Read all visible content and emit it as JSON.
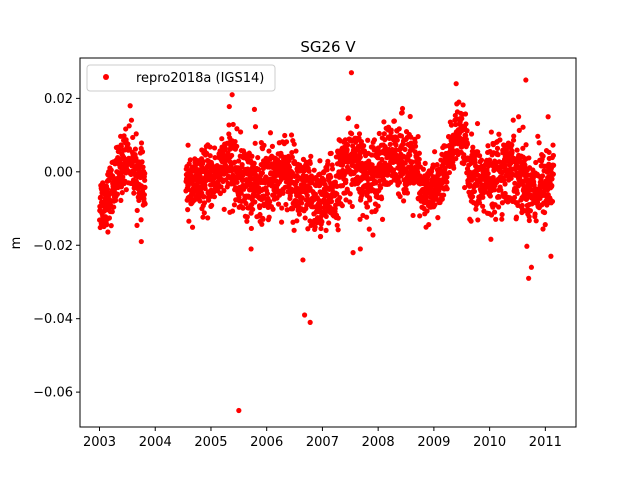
{
  "chart_data": {
    "type": "scatter",
    "title": "SG26 V",
    "xlabel": "",
    "ylabel": "m",
    "xlim": [
      2002.65,
      2011.55
    ],
    "ylim": [
      -0.0695,
      0.031
    ],
    "x_ticks": [
      2003,
      2004,
      2005,
      2006,
      2007,
      2008,
      2009,
      2010,
      2011
    ],
    "y_ticks": [
      0.02,
      0.0,
      -0.02,
      -0.04,
      -0.06
    ],
    "y_tick_labels": [
      "0.02",
      "0.00",
      "−0.02",
      "−0.04",
      "−0.06"
    ],
    "grid": false,
    "legend_position": "top-left",
    "series": [
      {
        "name": "repro2018a (IGS14)",
        "color": "#ff0000",
        "segments": [
          {
            "start": 2003.0,
            "end": 2003.82,
            "mean": [
              [
                2003.0,
                -0.009
              ],
              [
                2003.2,
                -0.006
              ],
              [
                2003.35,
                0.0
              ],
              [
                2003.5,
                0.005
              ],
              [
                2003.65,
                0.0
              ],
              [
                2003.82,
                -0.005
              ]
            ],
            "spread": 0.004
          },
          {
            "start": 2004.55,
            "end": 2005.3,
            "mean": [
              [
                2004.55,
                -0.004
              ],
              [
                2004.8,
                -0.003
              ],
              [
                2005.0,
                -0.002
              ],
              [
                2005.3,
                0.002
              ]
            ],
            "spread": 0.004
          },
          {
            "start": 2005.3,
            "end": 2006.0,
            "mean": [
              [
                2005.3,
                0.003
              ],
              [
                2005.6,
                -0.003
              ],
              [
                2006.0,
                -0.004
              ]
            ],
            "spread": 0.005
          },
          {
            "start": 2006.0,
            "end": 2006.9,
            "mean": [
              [
                2006.0,
                -0.003
              ],
              [
                2006.3,
                0.001
              ],
              [
                2006.6,
                -0.005
              ],
              [
                2006.9,
                -0.008
              ]
            ],
            "spread": 0.005
          },
          {
            "start": 2006.9,
            "end": 2007.8,
            "mean": [
              [
                2006.9,
                -0.008
              ],
              [
                2007.2,
                -0.006
              ],
              [
                2007.45,
                0.004
              ],
              [
                2007.8,
                -0.002
              ]
            ],
            "spread": 0.005
          },
          {
            "start": 2007.8,
            "end": 2008.75,
            "mean": [
              [
                2007.8,
                -0.002
              ],
              [
                2008.1,
                0.002
              ],
              [
                2008.4,
                0.005
              ],
              [
                2008.75,
                -0.002
              ]
            ],
            "spread": 0.005
          },
          {
            "start": 2008.75,
            "end": 2009.6,
            "mean": [
              [
                2008.75,
                -0.006
              ],
              [
                2009.1,
                -0.004
              ],
              [
                2009.4,
                0.01
              ],
              [
                2009.6,
                0.007
              ]
            ],
            "spread": 0.004
          },
          {
            "start": 2009.6,
            "end": 2011.15,
            "mean": [
              [
                2009.6,
                -0.003
              ],
              [
                2010.0,
                -0.002
              ],
              [
                2010.4,
                0.002
              ],
              [
                2010.7,
                -0.004
              ],
              [
                2011.0,
                -0.004
              ],
              [
                2011.15,
                0.0
              ]
            ],
            "spread": 0.005
          }
        ],
        "outliers": [
          {
            "x": 2005.5,
            "y": -0.065
          },
          {
            "x": 2006.68,
            "y": -0.039
          },
          {
            "x": 2006.78,
            "y": -0.041
          },
          {
            "x": 2005.38,
            "y": 0.021
          },
          {
            "x": 2007.52,
            "y": 0.027
          },
          {
            "x": 2010.65,
            "y": 0.025
          },
          {
            "x": 2003.55,
            "y": 0.018
          },
          {
            "x": 2005.78,
            "y": 0.017
          },
          {
            "x": 2009.4,
            "y": 0.024
          },
          {
            "x": 2010.7,
            "y": -0.029
          },
          {
            "x": 2010.75,
            "y": -0.026
          },
          {
            "x": 2011.1,
            "y": -0.023
          },
          {
            "x": 2006.65,
            "y": -0.024
          },
          {
            "x": 2005.72,
            "y": -0.021
          },
          {
            "x": 2003.75,
            "y": -0.019
          },
          {
            "x": 2007.55,
            "y": -0.022
          },
          {
            "x": 2007.68,
            "y": -0.021
          },
          {
            "x": 2011.05,
            "y": 0.015
          },
          {
            "x": 2010.52,
            "y": 0.015
          },
          {
            "x": 2008.42,
            "y": 0.016
          }
        ]
      }
    ]
  }
}
